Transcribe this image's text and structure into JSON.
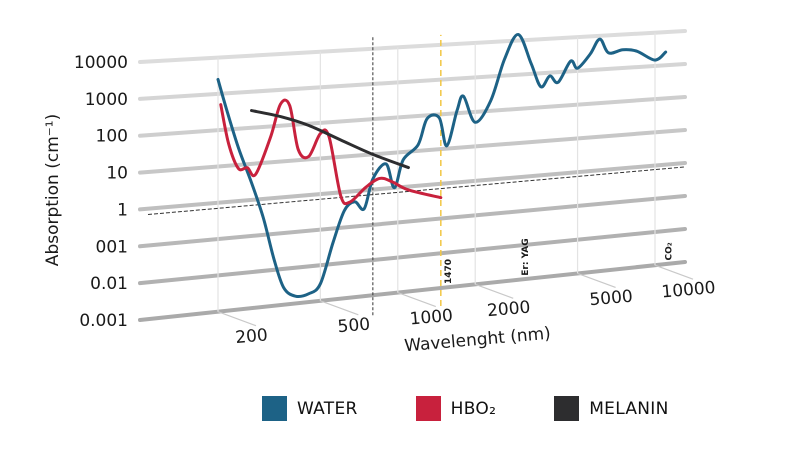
{
  "chart_data": {
    "type": "line",
    "title": "",
    "xlabel": "Wavelenght (nm)",
    "ylabel": "Absorption (cm⁻¹)",
    "xscale": "log",
    "yscale": "log",
    "xlim": [
      200,
      10000
    ],
    "ylim": [
      0.001,
      10000
    ],
    "x_ticks": [
      "200",
      "500",
      "1000",
      "2000",
      "5000",
      "10000"
    ],
    "x_tick_values": [
      200,
      500,
      1000,
      2000,
      5000,
      10000
    ],
    "y_ticks": [
      "10000",
      "1000",
      "100",
      "10",
      "1",
      "001",
      "0.01",
      "0.001"
    ],
    "y_tick_values": [
      10000,
      1000,
      100,
      10,
      1,
      0.1,
      0.01,
      0.001
    ],
    "grid": true,
    "legend_position": "bottom",
    "annotations": [
      {
        "label": "1470",
        "x": 1470,
        "style": "dashed-vertical",
        "color": "#f2c744"
      },
      {
        "label": "Er: YAG",
        "x": 2940
      },
      {
        "label": "CO₂",
        "x": 10600
      },
      {
        "label": "",
        "x": 800,
        "style": "dotted-vertical",
        "color": "#333333"
      },
      {
        "label": "",
        "y": 0.5,
        "style": "dotted-horizontal",
        "color": "#333333"
      }
    ],
    "series": [
      {
        "name": "WATER",
        "color": "#1d6286",
        "points": [
          [
            200,
            2500
          ],
          [
            215,
            400
          ],
          [
            240,
            30
          ],
          [
            270,
            3
          ],
          [
            300,
            0.3
          ],
          [
            330,
            0.02
          ],
          [
            360,
            0.003
          ],
          [
            400,
            0.0016
          ],
          [
            450,
            0.0017
          ],
          [
            500,
            0.003
          ],
          [
            560,
            0.04
          ],
          [
            620,
            0.3
          ],
          [
            680,
            0.5
          ],
          [
            740,
            0.3
          ],
          [
            800,
            2
          ],
          [
            900,
            5
          ],
          [
            970,
            1
          ],
          [
            1050,
            6
          ],
          [
            1200,
            15
          ],
          [
            1300,
            80
          ],
          [
            1450,
            80
          ],
          [
            1550,
            12
          ],
          [
            1700,
            120
          ],
          [
            1800,
            300
          ],
          [
            2000,
            50
          ],
          [
            2300,
            200
          ],
          [
            2600,
            3000
          ],
          [
            2940,
            15000
          ],
          [
            3300,
            2000
          ],
          [
            3600,
            400
          ],
          [
            3900,
            800
          ],
          [
            4200,
            500
          ],
          [
            4700,
            2000
          ],
          [
            5000,
            1200
          ],
          [
            5600,
            3000
          ],
          [
            6100,
            8000
          ],
          [
            6600,
            3000
          ],
          [
            7500,
            3500
          ],
          [
            8500,
            3000
          ],
          [
            10000,
            1500
          ],
          [
            11000,
            2500
          ]
        ]
      },
      {
        "name": "HbO₂",
        "color": "#c8213d",
        "points": [
          [
            205,
            500
          ],
          [
            220,
            40
          ],
          [
            240,
            8
          ],
          [
            260,
            8
          ],
          [
            280,
            5
          ],
          [
            320,
            50
          ],
          [
            350,
            400
          ],
          [
            380,
            350
          ],
          [
            410,
            20
          ],
          [
            450,
            12
          ],
          [
            500,
            50
          ],
          [
            540,
            40
          ],
          [
            600,
            0.8
          ],
          [
            650,
            0.5
          ],
          [
            750,
            1.2
          ],
          [
            850,
            2
          ],
          [
            950,
            1.5
          ],
          [
            1100,
            0.8
          ],
          [
            1470,
            0.4
          ]
        ]
      },
      {
        "name": "MELANIN",
        "color": "#2d2d2f",
        "points": [
          [
            270,
            300
          ],
          [
            350,
            180
          ],
          [
            450,
            90
          ],
          [
            600,
            30
          ],
          [
            800,
            10
          ],
          [
            1100,
            3.5
          ]
        ]
      }
    ]
  },
  "legend": {
    "items": [
      {
        "label": "WATER",
        "color": "#1d6286"
      },
      {
        "label": "HBO₂",
        "color": "#c8213d"
      },
      {
        "label": "MELANIN",
        "color": "#2d2d2f"
      }
    ]
  }
}
